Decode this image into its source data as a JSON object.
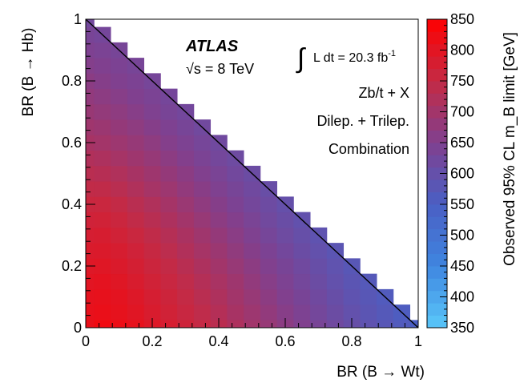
{
  "chart_data": {
    "type": "heatmap",
    "title": "",
    "xlabel": "BR (B → Wt)",
    "ylabel": "BR (B → Hb)",
    "colorbar_label": "Observed 95% CL m_B limit [GeV]",
    "xlim": [
      0,
      1
    ],
    "ylim": [
      0,
      1
    ],
    "zlim": [
      350,
      850
    ],
    "bin_width": 0.05,
    "x_ticks": [
      "0",
      "0.2",
      "0.4",
      "0.6",
      "0.8",
      "1"
    ],
    "y_ticks": [
      "0",
      "0.2",
      "0.4",
      "0.6",
      "0.8",
      "1"
    ],
    "z_ticks": [
      "350",
      "400",
      "450",
      "500",
      "550",
      "600",
      "650",
      "700",
      "750",
      "800",
      "850"
    ],
    "colorbar_levels": [
      350,
      370,
      390,
      410,
      430,
      450,
      470,
      490,
      510,
      530,
      550,
      570,
      590,
      610,
      630,
      650,
      670,
      690,
      710,
      730,
      750,
      770,
      790,
      810,
      830
    ],
    "color_scale": [
      "#5ac8fa",
      "#3f86e0",
      "#4a5fc4",
      "#80408f",
      "#c42a45",
      "#ff0000"
    ],
    "annotations": {
      "experiment": "ATLAS",
      "energy_sqrt": "√s",
      "energy_value": " = 8 TeV",
      "lumi_integral": "∫",
      "lumi_text": "L dt = 20.3 fb",
      "lumi_exp": "-1",
      "process": "Zb/t + X",
      "channel": "Dilep. + Trilep.",
      "combination": "Combination"
    },
    "values": [
      [
        812,
        826,
        820,
        810,
        794,
        780,
        766,
        752,
        736,
        718,
        700,
        684,
        668,
        652,
        636,
        620,
        604,
        588,
        576,
        564,
        552
      ],
      [
        810,
        814,
        808,
        798,
        784,
        770,
        756,
        742,
        726,
        708,
        692,
        676,
        660,
        644,
        628,
        612,
        596,
        582,
        570,
        558
      ],
      [
        806,
        810,
        804,
        792,
        778,
        764,
        750,
        734,
        718,
        700,
        684,
        668,
        652,
        636,
        620,
        604,
        588,
        576,
        564
      ],
      [
        800,
        804,
        796,
        784,
        770,
        756,
        742,
        726,
        710,
        694,
        676,
        660,
        644,
        628,
        612,
        596,
        582,
        570
      ],
      [
        794,
        796,
        788,
        776,
        762,
        748,
        732,
        716,
        700,
        684,
        668,
        652,
        636,
        620,
        604,
        590,
        576
      ],
      [
        786,
        788,
        780,
        768,
        754,
        738,
        722,
        706,
        690,
        674,
        658,
        642,
        626,
        610,
        596,
        582
      ],
      [
        778,
        780,
        770,
        758,
        744,
        728,
        712,
        696,
        680,
        664,
        648,
        632,
        616,
        602,
        588
      ],
      [
        768,
        770,
        760,
        746,
        732,
        716,
        700,
        684,
        668,
        654,
        638,
        622,
        608,
        594
      ],
      [
        758,
        758,
        748,
        734,
        720,
        704,
        688,
        672,
        658,
        642,
        628,
        614,
        600
      ],
      [
        746,
        744,
        734,
        720,
        706,
        692,
        676,
        662,
        648,
        634,
        620,
        606
      ],
      [
        734,
        730,
        720,
        708,
        694,
        680,
        666,
        652,
        638,
        624,
        612
      ],
      [
        722,
        716,
        706,
        694,
        682,
        668,
        654,
        640,
        628,
        616
      ],
      [
        708,
        702,
        692,
        682,
        670,
        656,
        644,
        632,
        620
      ],
      [
        696,
        690,
        680,
        670,
        658,
        646,
        634,
        622
      ],
      [
        686,
        678,
        670,
        660,
        648,
        636,
        626
      ],
      [
        676,
        668,
        660,
        650,
        640,
        630
      ],
      [
        666,
        658,
        650,
        642,
        632
      ],
      [
        656,
        650,
        642,
        634
      ],
      [
        646,
        640,
        634
      ],
      [
        636,
        630
      ],
      [
        624
      ]
    ]
  }
}
